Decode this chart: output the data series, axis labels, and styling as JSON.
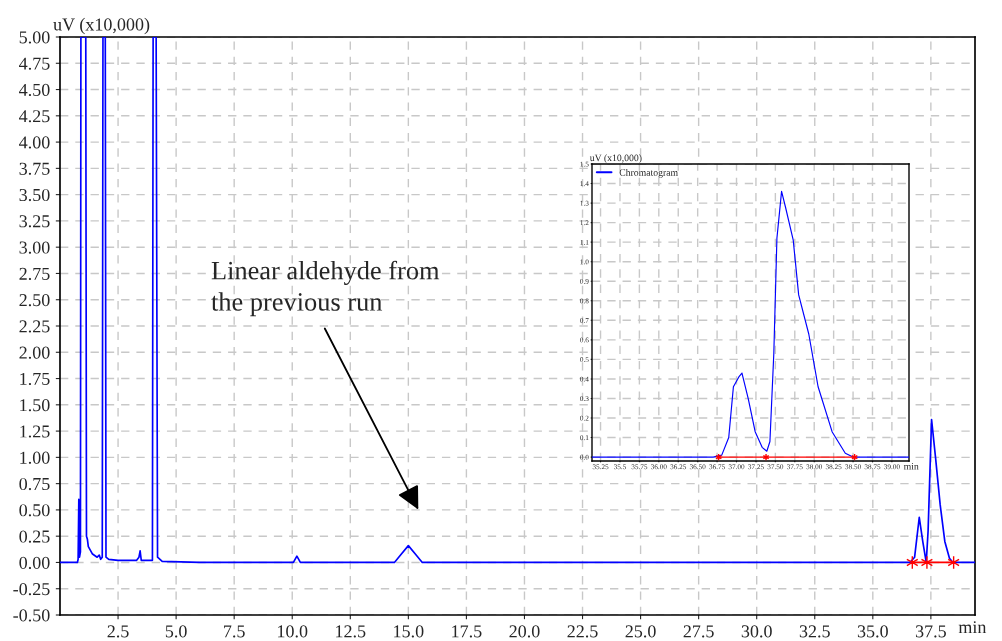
{
  "chart_data": [
    {
      "type": "line",
      "ylabel": "uV (x10,000)",
      "xlabel": "min",
      "xlim": [
        0,
        39.4
      ],
      "ylim": [
        -0.5,
        5.0
      ],
      "xticks": [
        {
          "value": 2.5,
          "label": "2.5"
        },
        {
          "value": 5.0,
          "label": "5.0"
        },
        {
          "value": 7.5,
          "label": "7.5"
        },
        {
          "value": 10.0,
          "label": "10.0"
        },
        {
          "value": 12.5,
          "label": "12.5"
        },
        {
          "value": 15.0,
          "label": "15.0"
        },
        {
          "value": 17.5,
          "label": "17.5"
        },
        {
          "value": 20.0,
          "label": "20.0"
        },
        {
          "value": 22.5,
          "label": "22.5"
        },
        {
          "value": 25.0,
          "label": "25.0"
        },
        {
          "value": 27.5,
          "label": "27.5"
        },
        {
          "value": 30.0,
          "label": "30.0"
        },
        {
          "value": 32.5,
          "label": "32.5"
        },
        {
          "value": 35.0,
          "label": "35.0"
        },
        {
          "value": 37.5,
          "label": "37.5"
        }
      ],
      "yticks": [
        {
          "value": -0.5,
          "label": "-0.50"
        },
        {
          "value": -0.25,
          "label": "-0.25"
        },
        {
          "value": 0,
          "label": "0.00"
        },
        {
          "value": 0.25,
          "label": "0.25"
        },
        {
          "value": 0.5,
          "label": "0.50"
        },
        {
          "value": 0.75,
          "label": "0.75"
        },
        {
          "value": 1.0,
          "label": "1.00"
        },
        {
          "value": 1.25,
          "label": "1.25"
        },
        {
          "value": 1.5,
          "label": "1.50"
        },
        {
          "value": 1.75,
          "label": "1.75"
        },
        {
          "value": 2.0,
          "label": "2.00"
        },
        {
          "value": 2.25,
          "label": "2.25"
        },
        {
          "value": 2.5,
          "label": "2.50"
        },
        {
          "value": 2.75,
          "label": "2.75"
        },
        {
          "value": 3.0,
          "label": "3.00"
        },
        {
          "value": 3.25,
          "label": "3.25"
        },
        {
          "value": 3.5,
          "label": "3.50"
        },
        {
          "value": 3.75,
          "label": "3.75"
        },
        {
          "value": 4.0,
          "label": "4.00"
        },
        {
          "value": 4.25,
          "label": "4.25"
        },
        {
          "value": 4.5,
          "label": "4.50"
        },
        {
          "value": 4.75,
          "label": "4.75"
        },
        {
          "value": 5.0,
          "label": "5.00"
        }
      ],
      "grid": true,
      "line_style": "solid",
      "series": [
        {
          "color": "#0000ff",
          "marker": "none",
          "x": [
            0,
            0.75,
            0.78,
            0.81,
            0.84,
            0.88,
            0.9,
            1.11,
            1.14,
            1.18,
            1.22,
            1.4,
            1.6,
            1.69,
            1.75,
            1.82,
            1.85,
            1.95,
            1.98,
            2.1,
            2.5,
            3.3,
            3.4,
            3.45,
            3.5,
            3.98,
            4.01,
            4.14,
            4.2,
            4.4,
            6,
            10.05,
            10.2,
            10.35,
            14.4,
            14.7,
            15.0,
            15.3,
            15.6,
            36.6,
            36.8,
            37.0,
            37.15,
            37.3,
            37.38,
            37.53,
            37.7,
            37.9,
            38.1,
            38.3,
            38.45,
            39.4
          ],
          "values": [
            0,
            0,
            0.03,
            0.6,
            0.05,
            0.1,
            5.0,
            5.0,
            0.25,
            0.22,
            0.15,
            0.08,
            0.05,
            0.07,
            0.03,
            0.05,
            5.0,
            5.0,
            0.05,
            0.03,
            0.02,
            0.02,
            0.05,
            0.11,
            0.02,
            0.02,
            5.0,
            5.0,
            0.05,
            0.01,
            0,
            0,
            0.06,
            0,
            0,
            0.08,
            0.16,
            0.08,
            0,
            0,
            0.05,
            0.43,
            0.2,
            0,
            0.3,
            1.36,
            1.0,
            0.55,
            0.2,
            0.04,
            0,
            0
          ]
        },
        {
          "color": "#ff0000",
          "marker": "cross",
          "x": [
            36.7,
            37.33,
            38.48
          ],
          "values": [
            0,
            0,
            0
          ]
        }
      ],
      "annotations": [
        "Linear aldehyde from\nthe previous run"
      ]
    },
    {
      "type": "line",
      "ylabel": "uV (x10,000)",
      "xlabel": "min",
      "xlim": [
        35.14,
        39.22
      ],
      "ylim": [
        -0.02,
        1.5
      ],
      "xticks": [
        35.25,
        35.5,
        35.75,
        {
          "value": 36.0,
          "label": "36.00"
        },
        36.25,
        {
          "value": 36.5,
          "label": "36.50"
        },
        36.75,
        {
          "value": 37.0,
          "label": "37.00"
        },
        37.25,
        {
          "value": 37.5,
          "label": "37.50"
        },
        37.75,
        {
          "value": 38.0,
          "label": "38.00"
        },
        38.25,
        {
          "value": 38.5,
          "label": "38.50"
        },
        38.75,
        {
          "value": 39.0,
          "label": "39.00"
        }
      ],
      "yticks": [
        {
          "value": 0,
          "label": "0.0"
        },
        0.1,
        0.2,
        0.3,
        0.4,
        0.5,
        0.6,
        0.7,
        0.8,
        0.9,
        {
          "value": 1.0,
          "label": "1.0"
        },
        1.1,
        1.2,
        1.3,
        1.4,
        1.5
      ],
      "grid": true,
      "line_style": "solid",
      "legend": "top left",
      "series": [
        {
          "name": "Chromatogram",
          "color": "#0000ff",
          "marker": "none",
          "x": [
            35.14,
            36.7,
            36.81,
            36.9,
            36.96,
            37.03,
            37.07,
            37.15,
            37.24,
            37.33,
            37.39,
            37.43,
            37.48,
            37.52,
            37.58,
            37.63,
            37.73,
            37.8,
            37.93,
            38.05,
            38.23,
            38.4,
            38.5,
            39.22
          ],
          "values": [
            0,
            0,
            0.01,
            0.1,
            0.36,
            0.41,
            0.43,
            0.3,
            0.13,
            0.05,
            0.03,
            0.08,
            0.53,
            1.12,
            1.36,
            1.28,
            1.11,
            0.83,
            0.63,
            0.36,
            0.13,
            0.02,
            0,
            0
          ]
        },
        {
          "color": "#ff0000",
          "marker": "cross",
          "x": [
            36.77,
            37.38,
            38.52
          ],
          "values": [
            0,
            0,
            0
          ]
        }
      ]
    }
  ]
}
